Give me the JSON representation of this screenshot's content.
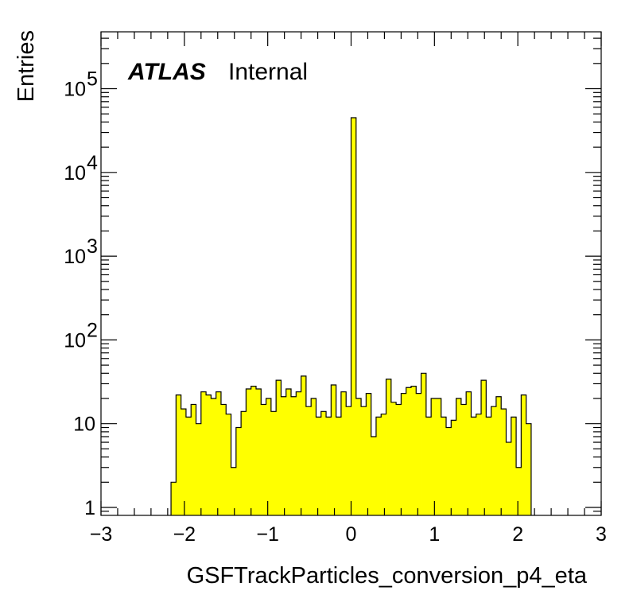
{
  "label": {
    "experiment": "ATLAS",
    "status": "Internal"
  },
  "chart_data": {
    "type": "bar",
    "subtype": "histogram-step-filled",
    "xlabel": "GSFTrackParticles_conversion_p4_eta",
    "ylabel": "Entries",
    "xlim": [
      -3,
      3
    ],
    "ylim": [
      0.8,
      400000
    ],
    "yscale": "log",
    "bin_width": 0.06,
    "fill_color": "#ffff00",
    "line_color": "#000000",
    "x_ticks": [
      {
        "value": -3,
        "label": "−3"
      },
      {
        "value": -2,
        "label": "−2"
      },
      {
        "value": -1,
        "label": "−1"
      },
      {
        "value": 0,
        "label": "0"
      },
      {
        "value": 1,
        "label": "1"
      },
      {
        "value": 2,
        "label": "2"
      },
      {
        "value": 3,
        "label": "3"
      }
    ],
    "y_ticks": [
      {
        "value": 1,
        "base": "1",
        "exp": ""
      },
      {
        "value": 10,
        "base": "10",
        "exp": ""
      },
      {
        "value": 100,
        "base": "10",
        "exp": "2"
      },
      {
        "value": 1000,
        "base": "10",
        "exp": "3"
      },
      {
        "value": 10000,
        "base": "10",
        "exp": "4"
      },
      {
        "value": 100000,
        "base": "10",
        "exp": "5"
      }
    ],
    "bins": [
      {
        "x": -2.16,
        "value": 2
      },
      {
        "x": -2.1,
        "value": 22
      },
      {
        "x": -2.04,
        "value": 15
      },
      {
        "x": -1.98,
        "value": 12
      },
      {
        "x": -1.92,
        "value": 17
      },
      {
        "x": -1.86,
        "value": 10
      },
      {
        "x": -1.8,
        "value": 24
      },
      {
        "x": -1.74,
        "value": 22
      },
      {
        "x": -1.68,
        "value": 20
      },
      {
        "x": -1.62,
        "value": 24
      },
      {
        "x": -1.56,
        "value": 17
      },
      {
        "x": -1.5,
        "value": 13
      },
      {
        "x": -1.44,
        "value": 3
      },
      {
        "x": -1.38,
        "value": 9
      },
      {
        "x": -1.32,
        "value": 14
      },
      {
        "x": -1.26,
        "value": 26
      },
      {
        "x": -1.2,
        "value": 28
      },
      {
        "x": -1.14,
        "value": 26
      },
      {
        "x": -1.08,
        "value": 17
      },
      {
        "x": -1.02,
        "value": 20
      },
      {
        "x": -0.96,
        "value": 14
      },
      {
        "x": -0.9,
        "value": 33
      },
      {
        "x": -0.84,
        "value": 21
      },
      {
        "x": -0.78,
        "value": 26
      },
      {
        "x": -0.72,
        "value": 21
      },
      {
        "x": -0.66,
        "value": 24
      },
      {
        "x": -0.6,
        "value": 37
      },
      {
        "x": -0.54,
        "value": 16
      },
      {
        "x": -0.48,
        "value": 20
      },
      {
        "x": -0.42,
        "value": 12
      },
      {
        "x": -0.36,
        "value": 14
      },
      {
        "x": -0.3,
        "value": 12
      },
      {
        "x": -0.24,
        "value": 29
      },
      {
        "x": -0.18,
        "value": 12
      },
      {
        "x": -0.12,
        "value": 24
      },
      {
        "x": -0.06,
        "value": 16
      },
      {
        "x": 0.0,
        "value": 45000
      },
      {
        "x": 0.06,
        "value": 20
      },
      {
        "x": 0.12,
        "value": 16
      },
      {
        "x": 0.18,
        "value": 23
      },
      {
        "x": 0.24,
        "value": 7
      },
      {
        "x": 0.3,
        "value": 12
      },
      {
        "x": 0.36,
        "value": 13
      },
      {
        "x": 0.42,
        "value": 34
      },
      {
        "x": 0.48,
        "value": 18
      },
      {
        "x": 0.54,
        "value": 17
      },
      {
        "x": 0.6,
        "value": 23
      },
      {
        "x": 0.66,
        "value": 27
      },
      {
        "x": 0.72,
        "value": 28
      },
      {
        "x": 0.78,
        "value": 23
      },
      {
        "x": 0.84,
        "value": 40
      },
      {
        "x": 0.9,
        "value": 12
      },
      {
        "x": 0.96,
        "value": 20
      },
      {
        "x": 1.02,
        "value": 20
      },
      {
        "x": 1.08,
        "value": 12
      },
      {
        "x": 1.14,
        "value": 9
      },
      {
        "x": 1.2,
        "value": 11
      },
      {
        "x": 1.26,
        "value": 20
      },
      {
        "x": 1.32,
        "value": 17
      },
      {
        "x": 1.38,
        "value": 24
      },
      {
        "x": 1.44,
        "value": 12
      },
      {
        "x": 1.5,
        "value": 13
      },
      {
        "x": 1.56,
        "value": 33
      },
      {
        "x": 1.62,
        "value": 12
      },
      {
        "x": 1.68,
        "value": 16
      },
      {
        "x": 1.74,
        "value": 21
      },
      {
        "x": 1.8,
        "value": 15
      },
      {
        "x": 1.86,
        "value": 6
      },
      {
        "x": 1.92,
        "value": 12
      },
      {
        "x": 1.98,
        "value": 3
      },
      {
        "x": 2.04,
        "value": 22
      },
      {
        "x": 2.1,
        "value": 10
      }
    ]
  }
}
